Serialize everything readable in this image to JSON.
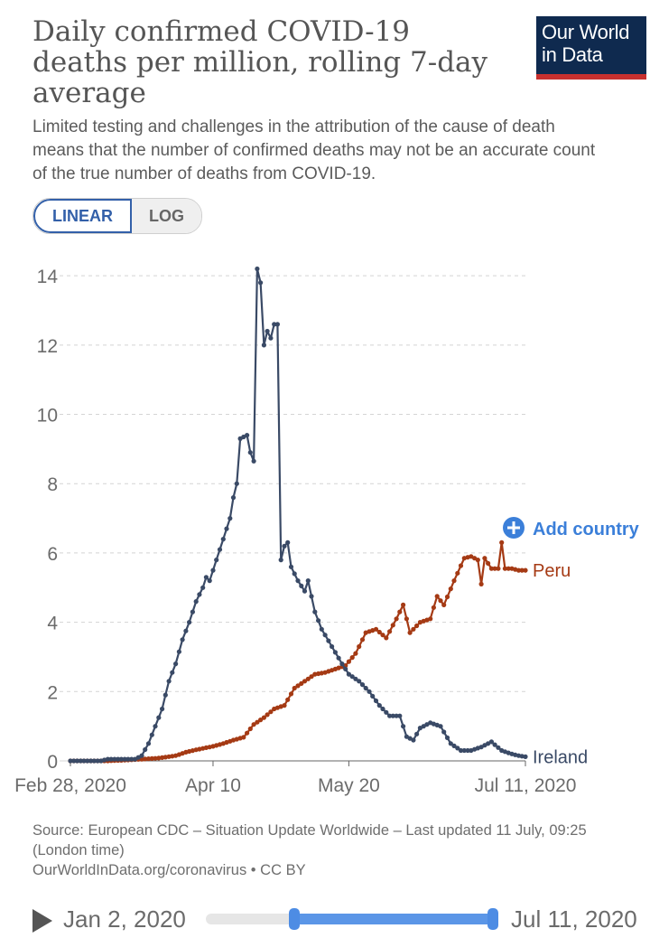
{
  "header": {
    "title": "Daily confirmed COVID-19 deaths per million, rolling 7-day average",
    "subtitle": "Limited testing and challenges in the attribution of the cause of death means that the number of confirmed deaths may not be an accurate count of the true number of deaths from COVID-19.",
    "logo_line1": "Our World",
    "logo_line2": "in Data"
  },
  "controls": {
    "linear_label": "LINEAR",
    "log_label": "LOG",
    "active": "linear",
    "add_country_label": "Add country"
  },
  "colors": {
    "ireland": "#3a4a66",
    "peru": "#a53a14",
    "accent": "#3360a9",
    "add_country": "#3b7fd9",
    "logo_bg": "#0f2a4f",
    "logo_stripe": "#c8302e"
  },
  "chart_data": {
    "type": "line",
    "title": "Daily confirmed COVID-19 deaths per million, rolling 7-day average",
    "xlabel": "",
    "ylabel": "",
    "ylim": [
      0,
      14.5
    ],
    "yticks": [
      0,
      2,
      4,
      6,
      8,
      10,
      12,
      14
    ],
    "ytick_labels": [
      "0",
      "2",
      "4",
      "6",
      "8",
      "10",
      "12",
      "14"
    ],
    "xlim": [
      "2020-02-28",
      "2020-07-11"
    ],
    "xticks": [
      "2020-02-28",
      "2020-04-10",
      "2020-05-20",
      "2020-07-11"
    ],
    "xtick_labels": [
      "Feb 28, 2020",
      "Apr 10",
      "May 20",
      "Jul 11, 2020"
    ],
    "grid": "horizontal dashed",
    "legend": "inline labels at line ends",
    "series": [
      {
        "name": "Peru",
        "color": "#a53a14",
        "points": [
          [
            "2020-02-28",
            0
          ],
          [
            "2020-03-10",
            0
          ],
          [
            "2020-03-15",
            0.02
          ],
          [
            "2020-03-20",
            0.05
          ],
          [
            "2020-03-25",
            0.08
          ],
          [
            "2020-03-30",
            0.15
          ],
          [
            "2020-04-02",
            0.25
          ],
          [
            "2020-04-05",
            0.32
          ],
          [
            "2020-04-10",
            0.42
          ],
          [
            "2020-04-13",
            0.5
          ],
          [
            "2020-04-16",
            0.6
          ],
          [
            "2020-04-19",
            0.68
          ],
          [
            "2020-04-22",
            1.05
          ],
          [
            "2020-04-25",
            1.25
          ],
          [
            "2020-04-28",
            1.5
          ],
          [
            "2020-05-01",
            1.6
          ],
          [
            "2020-05-04",
            2.1
          ],
          [
            "2020-05-07",
            2.3
          ],
          [
            "2020-05-10",
            2.5
          ],
          [
            "2020-05-13",
            2.55
          ],
          [
            "2020-05-16",
            2.65
          ],
          [
            "2020-05-19",
            2.75
          ],
          [
            "2020-05-22",
            3.1
          ],
          [
            "2020-05-25",
            3.7
          ],
          [
            "2020-05-28",
            3.8
          ],
          [
            "2020-05-31",
            3.55
          ],
          [
            "2020-06-03",
            4.1
          ],
          [
            "2020-06-05",
            4.5
          ],
          [
            "2020-06-07",
            3.7
          ],
          [
            "2020-06-10",
            4.0
          ],
          [
            "2020-06-13",
            4.1
          ],
          [
            "2020-06-15",
            4.75
          ],
          [
            "2020-06-17",
            4.5
          ],
          [
            "2020-06-20",
            5.2
          ],
          [
            "2020-06-23",
            5.85
          ],
          [
            "2020-06-25",
            5.9
          ],
          [
            "2020-06-27",
            5.8
          ],
          [
            "2020-06-28",
            5.1
          ],
          [
            "2020-06-29",
            5.85
          ],
          [
            "2020-07-01",
            5.55
          ],
          [
            "2020-07-03",
            5.55
          ],
          [
            "2020-07-04",
            6.3
          ],
          [
            "2020-07-05",
            5.55
          ],
          [
            "2020-07-07",
            5.55
          ],
          [
            "2020-07-09",
            5.5
          ],
          [
            "2020-07-11",
            5.5
          ]
        ]
      },
      {
        "name": "Ireland",
        "color": "#3a4a66",
        "points": [
          [
            "2020-02-28",
            0
          ],
          [
            "2020-03-08",
            0
          ],
          [
            "2020-03-10",
            0.05
          ],
          [
            "2020-03-12",
            0.05
          ],
          [
            "2020-03-18",
            0.05
          ],
          [
            "2020-03-20",
            0.15
          ],
          [
            "2020-03-22",
            0.5
          ],
          [
            "2020-03-24",
            1.0
          ],
          [
            "2020-03-26",
            1.5
          ],
          [
            "2020-03-28",
            2.3
          ],
          [
            "2020-03-30",
            2.8
          ],
          [
            "2020-04-01",
            3.5
          ],
          [
            "2020-04-03",
            4.0
          ],
          [
            "2020-04-05",
            4.6
          ],
          [
            "2020-04-07",
            5.0
          ],
          [
            "2020-04-08",
            5.3
          ],
          [
            "2020-04-09",
            5.2
          ],
          [
            "2020-04-11",
            5.8
          ],
          [
            "2020-04-13",
            6.4
          ],
          [
            "2020-04-15",
            7.0
          ],
          [
            "2020-04-16",
            7.6
          ],
          [
            "2020-04-17",
            8.0
          ],
          [
            "2020-04-18",
            9.3
          ],
          [
            "2020-04-20",
            9.4
          ],
          [
            "2020-04-21",
            8.9
          ],
          [
            "2020-04-22",
            8.65
          ],
          [
            "2020-04-23",
            14.2
          ],
          [
            "2020-04-24",
            13.8
          ],
          [
            "2020-04-25",
            12.0
          ],
          [
            "2020-04-26",
            12.4
          ],
          [
            "2020-04-27",
            12.2
          ],
          [
            "2020-04-28",
            12.6
          ],
          [
            "2020-04-29",
            12.6
          ],
          [
            "2020-04-30",
            5.8
          ],
          [
            "2020-05-01",
            6.2
          ],
          [
            "2020-05-02",
            6.3
          ],
          [
            "2020-05-03",
            5.6
          ],
          [
            "2020-05-05",
            5.2
          ],
          [
            "2020-05-07",
            4.9
          ],
          [
            "2020-05-08",
            5.2
          ],
          [
            "2020-05-10",
            4.3
          ],
          [
            "2020-05-12",
            3.8
          ],
          [
            "2020-05-15",
            3.3
          ],
          [
            "2020-05-18",
            2.8
          ],
          [
            "2020-05-20",
            2.5
          ],
          [
            "2020-05-23",
            2.3
          ],
          [
            "2020-05-26",
            2.0
          ],
          [
            "2020-05-29",
            1.6
          ],
          [
            "2020-06-01",
            1.3
          ],
          [
            "2020-06-04",
            1.3
          ],
          [
            "2020-06-06",
            0.7
          ],
          [
            "2020-06-08",
            0.6
          ],
          [
            "2020-06-10",
            0.95
          ],
          [
            "2020-06-13",
            1.1
          ],
          [
            "2020-06-16",
            1.0
          ],
          [
            "2020-06-19",
            0.5
          ],
          [
            "2020-06-22",
            0.3
          ],
          [
            "2020-06-25",
            0.3
          ],
          [
            "2020-06-28",
            0.4
          ],
          [
            "2020-07-01",
            0.55
          ],
          [
            "2020-07-04",
            0.3
          ],
          [
            "2020-07-07",
            0.2
          ],
          [
            "2020-07-09",
            0.15
          ],
          [
            "2020-07-11",
            0.12
          ]
        ]
      }
    ]
  },
  "source": {
    "line1": "Source: European CDC – Situation Update Worldwide – Last updated 11 July, 09:25 (London time)",
    "line2": "OurWorldInData.org/coronavirus • CC BY"
  },
  "timeline": {
    "start_label": "Jan 2, 2020",
    "end_label": "Jul 11, 2020",
    "range_start": "2020-02-28",
    "range_end": "2020-07-11"
  }
}
